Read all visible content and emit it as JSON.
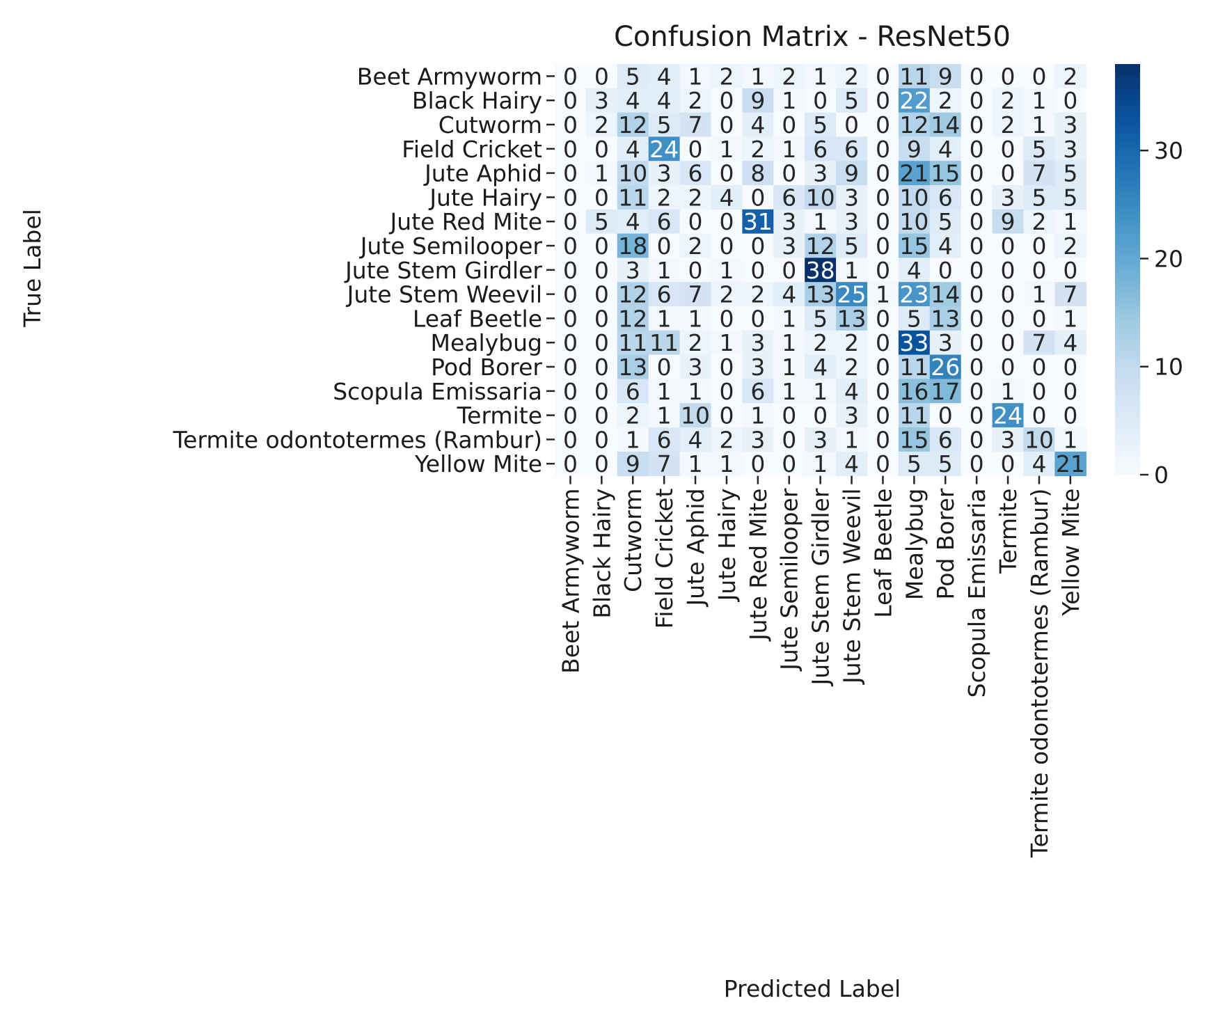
{
  "chart_data": {
    "type": "heatmap",
    "title": "Confusion Matrix - ResNet50",
    "xlabel": "Predicted Label",
    "ylabel": "True Label",
    "colormap": "Blues",
    "color_low": "#f7fbff",
    "color_high": "#08306b",
    "vmin": 0,
    "vmax": 38,
    "colorbar_ticks": [
      0,
      10,
      20,
      30
    ],
    "legend_position": "right",
    "x_categories": [
      "Beet Armyworm",
      "Black Hairy",
      "Cutworm",
      "Field Cricket",
      "Jute Aphid",
      "Jute Hairy",
      "Jute Red Mite",
      "Jute Semilooper",
      "Jute Stem Girdler",
      "Jute Stem Weevil",
      "Leaf Beetle",
      "Mealybug",
      "Pod Borer",
      "Scopula Emissaria",
      "Termite",
      "Termite odontotermes (Rambur)",
      "Yellow Mite"
    ],
    "y_categories": [
      "Beet Armyworm",
      "Black Hairy",
      "Cutworm",
      "Field Cricket",
      "Jute Aphid",
      "Jute Hairy",
      "Jute Red Mite",
      "Jute Semilooper",
      "Jute Stem Girdler",
      "Jute Stem Weevil",
      "Leaf Beetle",
      "Mealybug",
      "Pod Borer",
      "Scopula Emissaria",
      "Termite",
      "Termite odontotermes (Rambur)",
      "Yellow Mite"
    ],
    "values": [
      [
        0,
        0,
        5,
        4,
        1,
        2,
        1,
        2,
        1,
        2,
        0,
        11,
        9,
        0,
        0,
        0,
        2
      ],
      [
        0,
        3,
        4,
        4,
        2,
        0,
        9,
        1,
        0,
        5,
        0,
        22,
        2,
        0,
        2,
        1,
        0
      ],
      [
        0,
        2,
        12,
        5,
        7,
        0,
        4,
        0,
        5,
        0,
        0,
        12,
        14,
        0,
        2,
        1,
        3
      ],
      [
        0,
        0,
        4,
        24,
        0,
        1,
        2,
        1,
        6,
        6,
        0,
        9,
        4,
        0,
        0,
        5,
        3
      ],
      [
        0,
        1,
        10,
        3,
        6,
        0,
        8,
        0,
        3,
        9,
        0,
        21,
        15,
        0,
        0,
        7,
        5
      ],
      [
        0,
        0,
        11,
        2,
        2,
        4,
        0,
        6,
        10,
        3,
        0,
        10,
        6,
        0,
        3,
        5,
        5
      ],
      [
        0,
        5,
        4,
        6,
        0,
        0,
        31,
        3,
        1,
        3,
        0,
        10,
        5,
        0,
        9,
        2,
        1
      ],
      [
        0,
        0,
        18,
        0,
        2,
        0,
        0,
        3,
        12,
        5,
        0,
        15,
        4,
        0,
        0,
        0,
        2
      ],
      [
        0,
        0,
        3,
        1,
        0,
        1,
        0,
        0,
        38,
        1,
        0,
        4,
        0,
        0,
        0,
        0,
        0
      ],
      [
        0,
        0,
        12,
        6,
        7,
        2,
        2,
        4,
        13,
        25,
        1,
        23,
        14,
        0,
        0,
        1,
        7
      ],
      [
        0,
        0,
        12,
        1,
        1,
        0,
        0,
        1,
        5,
        13,
        0,
        5,
        13,
        0,
        0,
        0,
        1
      ],
      [
        0,
        0,
        11,
        11,
        2,
        1,
        3,
        1,
        2,
        2,
        0,
        33,
        3,
        0,
        0,
        7,
        4
      ],
      [
        0,
        0,
        13,
        0,
        3,
        0,
        3,
        1,
        4,
        2,
        0,
        11,
        26,
        0,
        0,
        0,
        0
      ],
      [
        0,
        0,
        6,
        1,
        1,
        0,
        6,
        1,
        1,
        4,
        0,
        16,
        17,
        0,
        1,
        0,
        0
      ],
      [
        0,
        0,
        2,
        1,
        10,
        0,
        1,
        0,
        0,
        3,
        0,
        11,
        0,
        0,
        24,
        0,
        0
      ],
      [
        0,
        0,
        1,
        6,
        4,
        2,
        3,
        0,
        3,
        1,
        0,
        15,
        6,
        0,
        3,
        10,
        1
      ],
      [
        0,
        0,
        9,
        7,
        1,
        1,
        0,
        0,
        1,
        4,
        0,
        5,
        5,
        0,
        0,
        4,
        21
      ]
    ]
  }
}
